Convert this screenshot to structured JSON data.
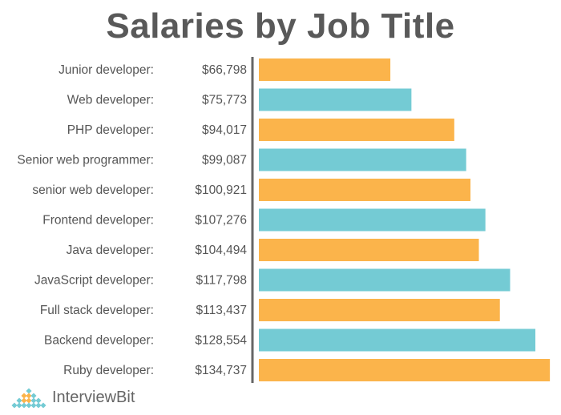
{
  "chart_data": {
    "type": "bar",
    "orientation": "horizontal",
    "title": "Salaries by Job Title",
    "categories": [
      "Junior developer:",
      "Web developer:",
      "PHP developer:",
      "Senior web programmer:",
      "senior web developer:",
      "Frontend developer:",
      "Java developer:",
      "JavaScript developer:",
      "Full stack developer:",
      "Backend developer:",
      "Ruby developer:"
    ],
    "values": [
      66798,
      75773,
      94017,
      99087,
      100921,
      107276,
      104494,
      117798,
      113437,
      128554,
      134737
    ],
    "value_labels": [
      "$66,798",
      "$75,773",
      "$94,017",
      "$99,087",
      "$100,921",
      "$107,276",
      "$104,494",
      "$117,798",
      "$113,437",
      "$128,554",
      "$134,737"
    ],
    "colors": [
      "#FBB44B",
      "#74CBD4"
    ],
    "grid": false,
    "legend": "none"
  },
  "logo": {
    "text_a": "Interview",
    "text_b": "Bit"
  }
}
